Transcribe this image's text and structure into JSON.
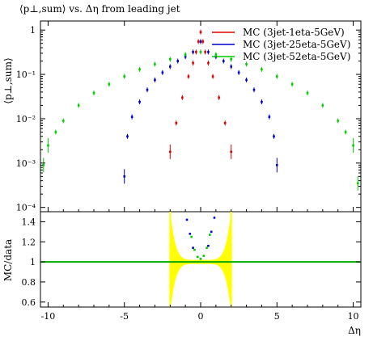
{
  "chart_data": {
    "type": "scatter",
    "title": "⟨p⊥,sum⟩ vs. Δη from leading jet",
    "top_panel": {
      "ylabel": "⟨p⊥,sum⟩",
      "yscale": "log",
      "ylim": [
        8e-05,
        1.6
      ],
      "y_ticks": [
        {
          "v": 1,
          "label": "1"
        },
        {
          "v": 0.1,
          "label": "10⁻¹"
        },
        {
          "v": 0.01,
          "label": "10⁻²"
        },
        {
          "v": 0.001,
          "label": "10⁻³"
        },
        {
          "v": 0.0001,
          "label": "10⁻⁴"
        }
      ]
    },
    "ratio_panel": {
      "ylabel": "MC/data",
      "ylim": [
        0.55,
        1.5
      ],
      "y_ticks": [
        {
          "v": 1.4,
          "label": "1.4"
        },
        {
          "v": 1.2,
          "label": "1.2"
        },
        {
          "v": 1.0,
          "label": "1"
        },
        {
          "v": 0.8,
          "label": "0.8"
        },
        {
          "v": 0.6,
          "label": "0.6"
        }
      ],
      "reference_line": 1.0,
      "band_color": "#ffff00"
    },
    "xlabel": "Δη",
    "xlim": [
      -10.5,
      10.5
    ],
    "x_ticks": [
      {
        "v": -10,
        "label": "-10"
      },
      {
        "v": -5,
        "label": "-5"
      },
      {
        "v": 0,
        "label": "0"
      },
      {
        "v": 5,
        "label": "5"
      },
      {
        "v": 10,
        "label": "10"
      }
    ],
    "legend_position": "top-right",
    "series": [
      {
        "name": "MC (3jet-1eta-5GeV)",
        "color": "#dd0000",
        "x": [
          -2.0,
          -1.6,
          -1.2,
          -0.8,
          -0.5,
          -0.3,
          -0.15,
          0.0,
          0.15,
          0.3,
          0.5,
          0.8,
          1.2,
          1.6,
          2.0
        ],
        "y": [
          0.0018,
          0.008,
          0.03,
          0.09,
          0.18,
          0.32,
          0.55,
          0.9,
          0.55,
          0.32,
          0.18,
          0.09,
          0.03,
          0.008,
          0.0018
        ]
      },
      {
        "name": "MC (3jet-25eta-5GeV)",
        "color": "#0000cc",
        "x": [
          -5.0,
          -4.8,
          -4.5,
          -4.0,
          -3.5,
          -3.0,
          -2.5,
          -2.0,
          -1.5,
          -1.0,
          -0.5,
          0.0,
          0.5,
          1.0,
          1.5,
          2.0,
          2.5,
          3.0,
          3.5,
          4.0,
          4.5,
          4.8,
          5.0
        ],
        "y": [
          0.0005,
          0.004,
          0.011,
          0.024,
          0.045,
          0.075,
          0.11,
          0.15,
          0.2,
          0.25,
          0.32,
          0.55,
          0.32,
          0.25,
          0.2,
          0.15,
          0.11,
          0.075,
          0.045,
          0.024,
          0.011,
          0.004,
          0.0009
        ]
      },
      {
        "name": "MC (3jet-52eta-5GeV)",
        "color": "#00cc00",
        "x": [
          -10.3,
          -10.0,
          -9.5,
          -9.0,
          -8.0,
          -7.0,
          -6.0,
          -5.0,
          -4.0,
          -3.0,
          -2.0,
          -1.0,
          0.0,
          1.0,
          2.0,
          3.0,
          4.0,
          5.0,
          6.0,
          7.0,
          8.0,
          9.0,
          9.5,
          10.0,
          10.3
        ],
        "y": [
          0.0009,
          0.0025,
          0.005,
          0.009,
          0.02,
          0.038,
          0.06,
          0.09,
          0.13,
          0.17,
          0.22,
          0.28,
          0.32,
          0.28,
          0.22,
          0.17,
          0.13,
          0.09,
          0.06,
          0.038,
          0.02,
          0.009,
          0.005,
          0.0025,
          0.00035
        ]
      }
    ]
  }
}
